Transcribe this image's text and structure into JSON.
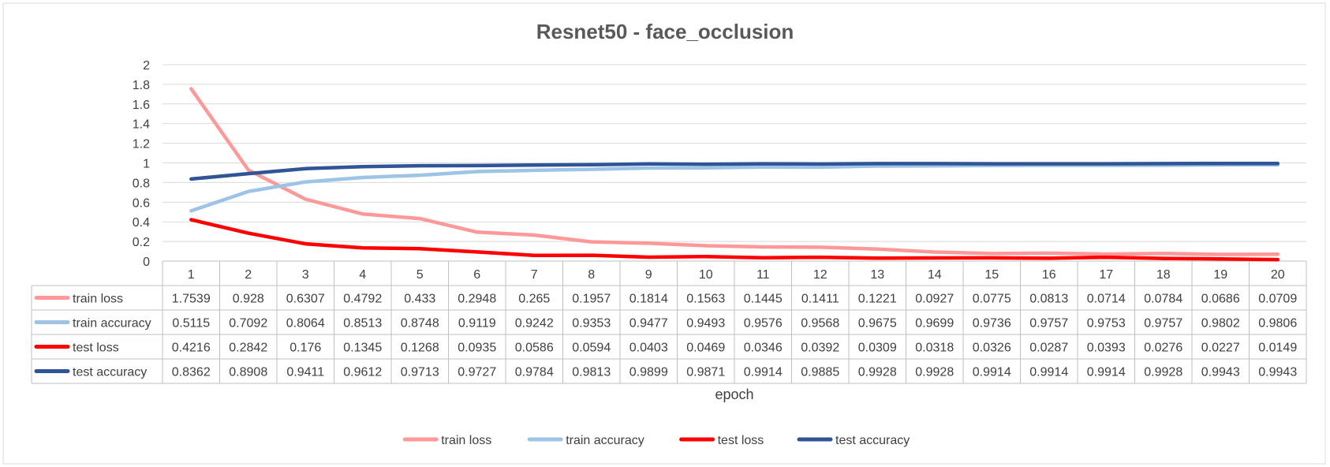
{
  "chart_data": {
    "type": "line",
    "title": "Resnet50 - face_occlusion",
    "xlabel": "epoch",
    "ylabel": "",
    "ylim": [
      0,
      2
    ],
    "yticks": [
      "0",
      "0.2",
      "0.4",
      "0.6",
      "0.8",
      "1",
      "1.2",
      "1.4",
      "1.6",
      "1.8",
      "2"
    ],
    "grid": true,
    "legend_position": "bottom",
    "categories": [
      "1",
      "2",
      "3",
      "4",
      "5",
      "6",
      "7",
      "8",
      "9",
      "10",
      "11",
      "12",
      "13",
      "14",
      "15",
      "16",
      "17",
      "18",
      "19",
      "20"
    ],
    "series": [
      {
        "name": "train loss",
        "color": "#ff9999",
        "values": [
          1.7539,
          0.928,
          0.6307,
          0.4792,
          0.433,
          0.2948,
          0.265,
          0.1957,
          0.1814,
          0.1563,
          0.1445,
          0.1411,
          0.1221,
          0.0927,
          0.0775,
          0.0813,
          0.0714,
          0.0784,
          0.0686,
          0.0709
        ],
        "labels": [
          "1.7539",
          "0.928",
          "0.6307",
          "0.4792",
          "0.433",
          "0.2948",
          "0.265",
          "0.1957",
          "0.1814",
          "0.1563",
          "0.1445",
          "0.1411",
          "0.1221",
          "0.0927",
          "0.0775",
          "0.0813",
          "0.0714",
          "0.0784",
          "0.0686",
          "0.0709"
        ]
      },
      {
        "name": "train accuracy",
        "color": "#9dc3e6",
        "values": [
          0.5115,
          0.7092,
          0.8064,
          0.8513,
          0.8748,
          0.9119,
          0.9242,
          0.9353,
          0.9477,
          0.9493,
          0.9576,
          0.9568,
          0.9675,
          0.9699,
          0.9736,
          0.9757,
          0.9753,
          0.9757,
          0.9802,
          0.9806
        ],
        "labels": [
          "0.5115",
          "0.7092",
          "0.8064",
          "0.8513",
          "0.8748",
          "0.9119",
          "0.9242",
          "0.9353",
          "0.9477",
          "0.9493",
          "0.9576",
          "0.9568",
          "0.9675",
          "0.9699",
          "0.9736",
          "0.9757",
          "0.9753",
          "0.9757",
          "0.9802",
          "0.9806"
        ]
      },
      {
        "name": "test loss",
        "color": "#ff0000",
        "values": [
          0.4216,
          0.2842,
          0.176,
          0.1345,
          0.1268,
          0.0935,
          0.0586,
          0.0594,
          0.0403,
          0.0469,
          0.0346,
          0.0392,
          0.0309,
          0.0318,
          0.0326,
          0.0287,
          0.0393,
          0.0276,
          0.0227,
          0.0149
        ],
        "labels": [
          "0.4216",
          "0.2842",
          "0.176",
          "0.1345",
          "0.1268",
          "0.0935",
          "0.0586",
          "0.0594",
          "0.0403",
          "0.0469",
          "0.0346",
          "0.0392",
          "0.0309",
          "0.0318",
          "0.0326",
          "0.0287",
          "0.0393",
          "0.0276",
          "0.0227",
          "0.0149"
        ]
      },
      {
        "name": "test accuracy",
        "color": "#2f5597",
        "values": [
          0.8362,
          0.8908,
          0.9411,
          0.9612,
          0.9713,
          0.9727,
          0.9784,
          0.9813,
          0.9899,
          0.9871,
          0.9914,
          0.9885,
          0.9928,
          0.9928,
          0.9914,
          0.9914,
          0.9914,
          0.9928,
          0.9943,
          0.9943
        ],
        "labels": [
          "0.8362",
          "0.8908",
          "0.9411",
          "0.9612",
          "0.9713",
          "0.9727",
          "0.9784",
          "0.9813",
          "0.9899",
          "0.9871",
          "0.9914",
          "0.9885",
          "0.9928",
          "0.9928",
          "0.9914",
          "0.9914",
          "0.9914",
          "0.9928",
          "0.9943",
          "0.9943"
        ]
      }
    ]
  }
}
